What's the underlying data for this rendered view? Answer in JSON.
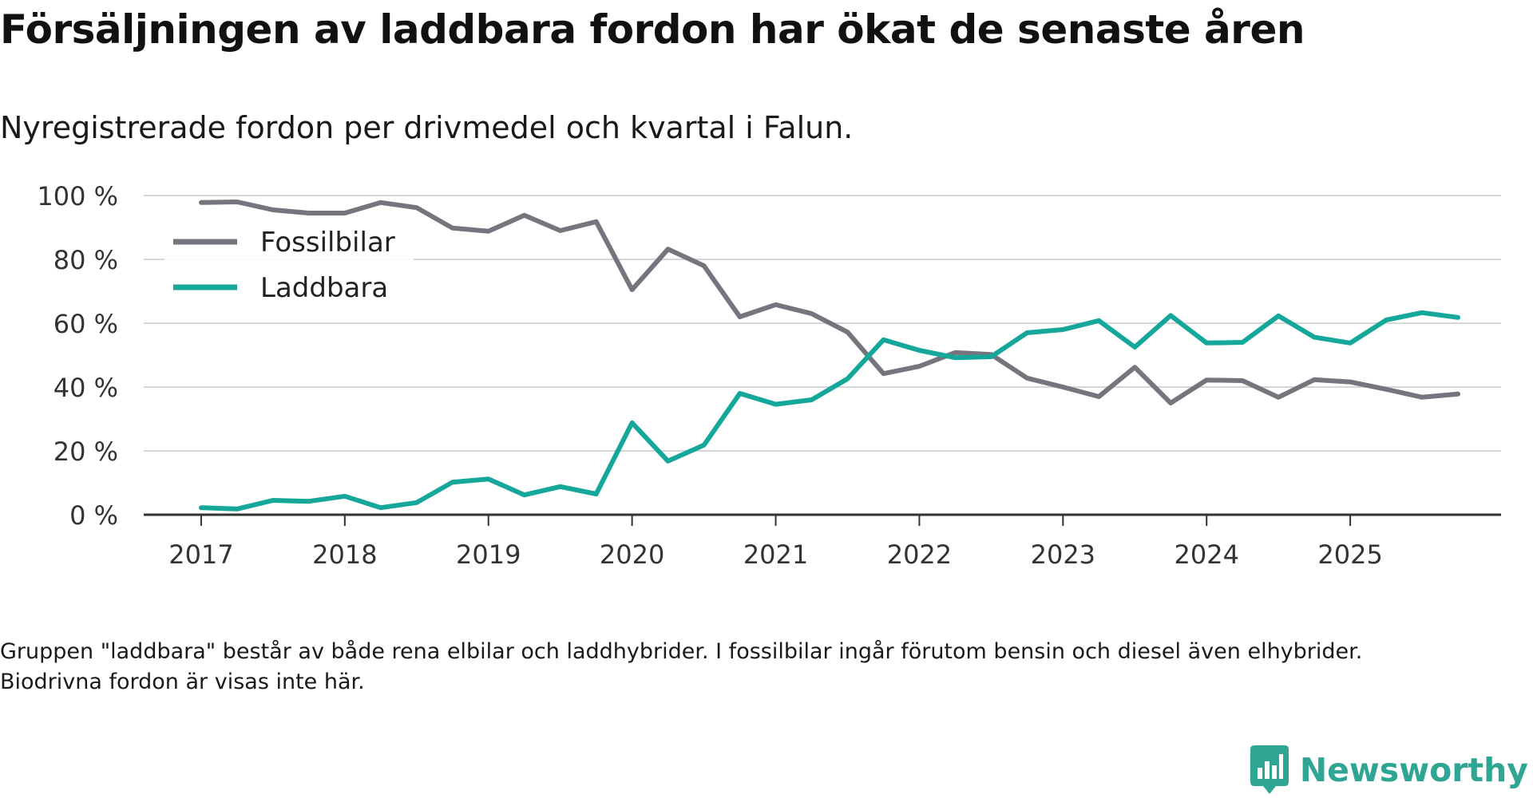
{
  "title": "Försäljningen av laddbara fordon har ökat de senaste åren",
  "subtitle": "Nyregistrerade fordon per drivmedel och kvartal i Falun.",
  "footnote": "Gruppen \"laddbara\" består av både rena elbilar och laddhybrider. I fossilbilar ingår förutom bensin och diesel även elhybrider. Biodrivna fordon är visas inte här.",
  "brand": {
    "name": "Newsworthy",
    "icon": "newsworthy-logo-icon"
  },
  "colors": {
    "fossil": "#76757d",
    "laddbara": "#14a79a",
    "grid": "#d6d6d6",
    "axis": "#333333",
    "brand": "#2fa593"
  },
  "chart_data": {
    "type": "line",
    "title": "Försäljningen av laddbara fordon har ökat de senaste åren",
    "xlabel": "",
    "ylabel": "",
    "x_ticks": [
      "2017",
      "2018",
      "2019",
      "2020",
      "2021",
      "2022",
      "2023",
      "2024",
      "2025"
    ],
    "y_ticks": [
      "0 %",
      "20 %",
      "40 %",
      "60 %",
      "80 %",
      "100 %"
    ],
    "ylim": [
      0,
      100
    ],
    "xlim": [
      2016.6,
      2026.05
    ],
    "grid": true,
    "legend": "top-left",
    "x": [
      2017.0,
      2017.25,
      2017.5,
      2017.75,
      2018.0,
      2018.25,
      2018.5,
      2018.75,
      2019.0,
      2019.25,
      2019.5,
      2019.75,
      2020.0,
      2020.25,
      2020.5,
      2020.75,
      2021.0,
      2021.25,
      2021.5,
      2021.75,
      2022.0,
      2022.25,
      2022.5,
      2022.75,
      2023.0,
      2023.25,
      2023.5,
      2023.75,
      2024.0,
      2024.25,
      2024.5,
      2024.75,
      2025.0,
      2025.25,
      2025.5,
      2025.75
    ],
    "series": [
      {
        "name": "Fossilbilar",
        "color": "#76757d",
        "values": [
          97.8,
          98,
          95.5,
          94.5,
          94.5,
          97.8,
          96.2,
          89.8,
          88.8,
          93.8,
          89,
          91.8,
          70.5,
          83.2,
          78,
          62,
          65.8,
          63,
          57.2,
          44.2,
          46.5,
          50.8,
          50.2,
          42.8,
          40,
          37,
          46.2,
          35,
          42.2,
          42,
          36.8,
          42.3,
          41.6,
          39.3,
          36.8,
          37.8
        ]
      },
      {
        "name": "Laddbara",
        "color": "#14a79a",
        "values": [
          2.2,
          1.8,
          4.5,
          4.2,
          5.8,
          2.2,
          3.8,
          10.2,
          11.2,
          6.2,
          8.8,
          6.5,
          28.8,
          16.8,
          21.8,
          38,
          34.6,
          36,
          42.6,
          54.8,
          51.5,
          49.2,
          49.5,
          57,
          58,
          60.8,
          52.5,
          62.4,
          53.8,
          54,
          62.3,
          55.6,
          53.8,
          61,
          63.3,
          61.8
        ]
      }
    ]
  }
}
